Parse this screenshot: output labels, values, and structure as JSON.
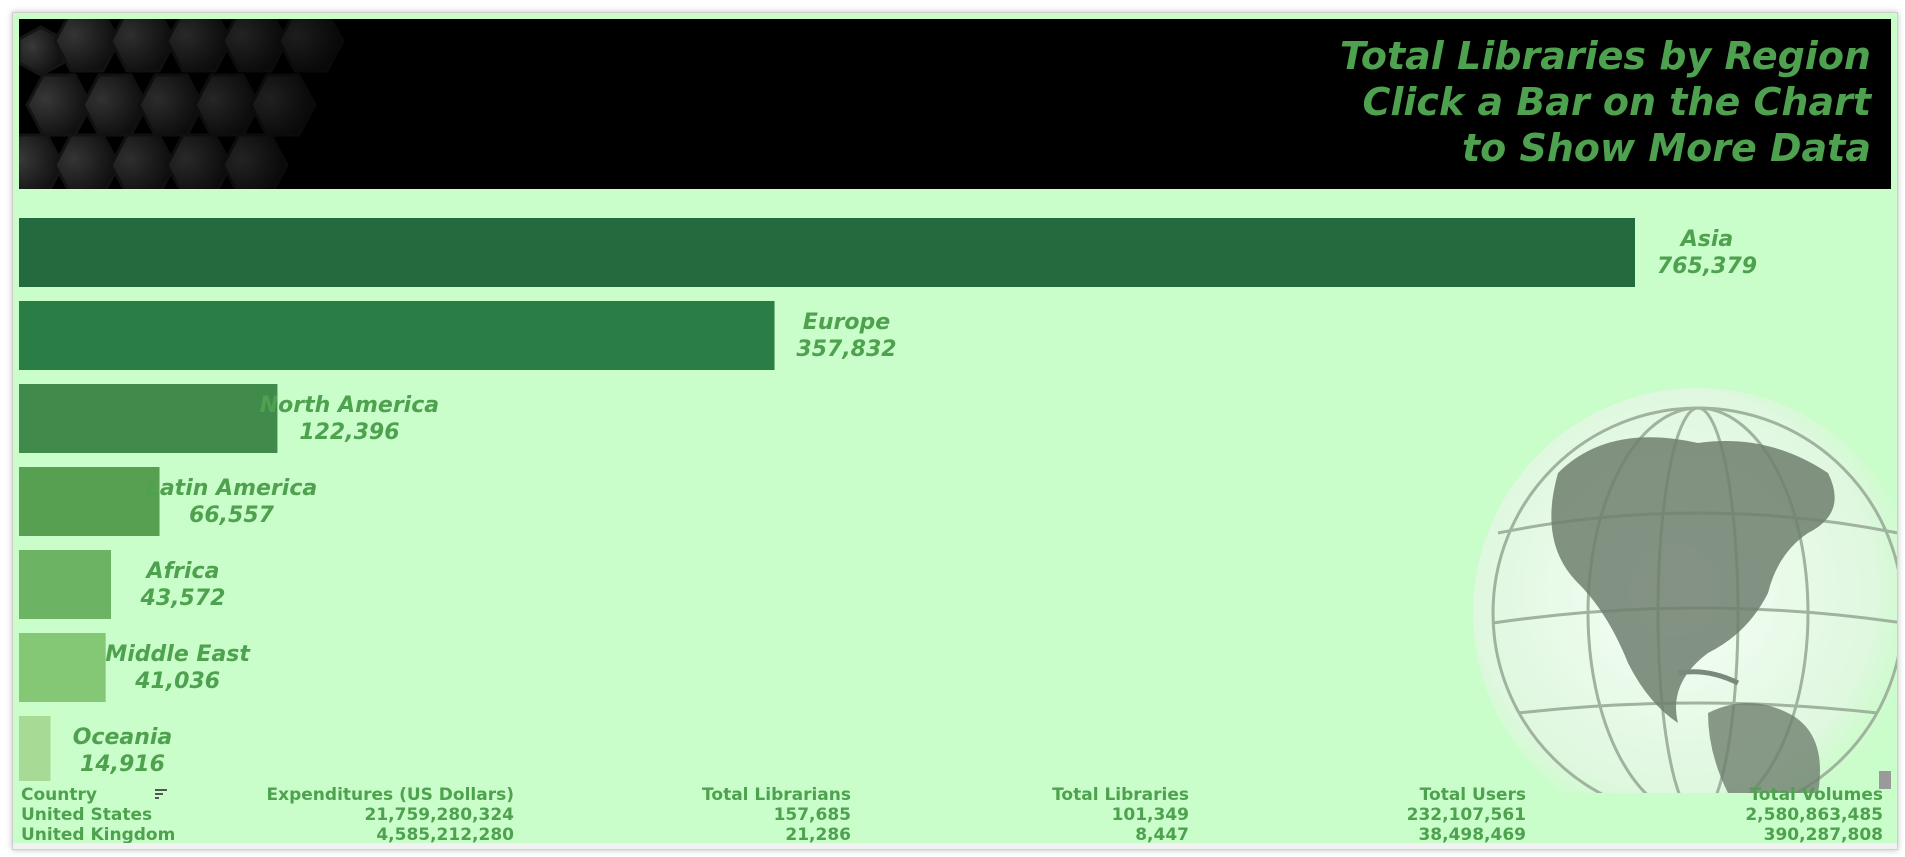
{
  "header": {
    "title_lines": [
      "Total Libraries by Region",
      "Click a Bar on the Chart",
      "to Show More Data"
    ]
  },
  "colors": {
    "background": "#c9fdc9",
    "label": "#4ea14e",
    "bars": [
      "#236a3e",
      "#2a7e45",
      "#408b4c",
      "#57a052",
      "#6cb463",
      "#84c775",
      "#a7da94"
    ]
  },
  "chart_data": {
    "type": "bar",
    "orientation": "horizontal",
    "categories": [
      "Asia",
      "Europe",
      "North America",
      "Latin America",
      "Africa",
      "Middle East",
      "Oceania"
    ],
    "values": [
      765379,
      357832,
      122396,
      66557,
      43572,
      41036,
      14916
    ],
    "value_labels": [
      "765,379",
      "357,832",
      "122,396",
      "66,557",
      "43,572",
      "41,036",
      "14,916"
    ],
    "title": "Total Libraries by Region",
    "grid": false
  },
  "table": {
    "columns": [
      "Country",
      "Expenditures  (US Dollars)",
      "Total Librarians",
      "Total Libraries",
      "Total Users",
      "Total Volumes"
    ],
    "rows": [
      [
        "United States",
        "21,759,280,324",
        "157,685",
        "101,349",
        "232,107,561",
        "2,580,863,485"
      ],
      [
        "United Kingdom",
        "4,585,212,280",
        "21,286",
        "8,447",
        "38,498,469",
        "390,287,808"
      ]
    ]
  },
  "icons": {
    "sort": "sort-icon",
    "background": "globe-image",
    "header_pattern": "hexagon-pattern"
  }
}
